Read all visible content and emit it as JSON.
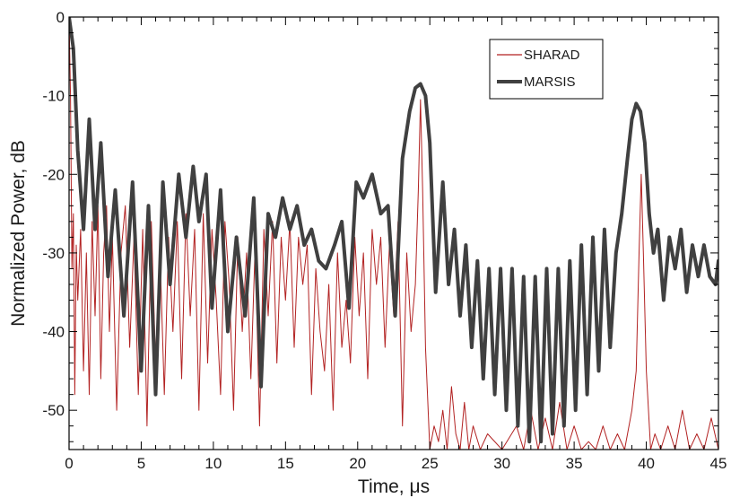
{
  "chart_data": {
    "type": "line",
    "title": "",
    "xlabel": "Time, μs",
    "ylabel": "Normalized Power, dB",
    "xlim": [
      0,
      45
    ],
    "ylim": [
      -55,
      0
    ],
    "xticks": [
      0,
      5,
      10,
      15,
      20,
      25,
      30,
      35,
      40,
      45
    ],
    "yticks": [
      0,
      -10,
      -20,
      -30,
      -40,
      -50
    ],
    "xtick_labels": [
      "0",
      "5",
      "10",
      "15",
      "20",
      "25",
      "30",
      "35",
      "40",
      "45"
    ],
    "ytick_labels": [
      "0",
      "-10",
      "-20",
      "-30",
      "-40",
      "-50"
    ],
    "grid": false,
    "legend_position": "top-right",
    "series": [
      {
        "name": "SHARAD",
        "color": "#b22222",
        "style": "thin",
        "x": [
          0,
          0.1,
          0.2,
          0.3,
          0.4,
          0.5,
          0.6,
          0.8,
          1.0,
          1.2,
          1.4,
          1.6,
          1.8,
          2.0,
          2.2,
          2.4,
          2.6,
          2.8,
          3.0,
          3.3,
          3.6,
          3.9,
          4.2,
          4.5,
          4.8,
          5.1,
          5.4,
          5.7,
          6.0,
          6.3,
          6.6,
          6.9,
          7.2,
          7.5,
          7.8,
          8.1,
          8.4,
          8.7,
          9.0,
          9.3,
          9.6,
          9.9,
          10.2,
          10.5,
          10.8,
          11.1,
          11.4,
          11.7,
          12.0,
          12.3,
          12.6,
          12.9,
          13.2,
          13.5,
          13.8,
          14.1,
          14.4,
          14.7,
          15.0,
          15.3,
          15.6,
          15.9,
          16.2,
          16.5,
          16.8,
          17.1,
          17.4,
          17.7,
          18.0,
          18.3,
          18.6,
          18.9,
          19.2,
          19.5,
          19.8,
          20.1,
          20.4,
          20.7,
          21.0,
          21.3,
          21.6,
          21.9,
          22.2,
          22.5,
          22.8,
          23.1,
          23.4,
          23.7,
          24.0,
          24.2,
          24.35,
          24.5,
          24.7,
          25.0,
          25.3,
          25.6,
          25.9,
          26.2,
          26.5,
          26.8,
          27.1,
          27.4,
          27.7,
          28.0,
          28.5,
          29.0,
          30.0,
          31.0,
          31.5,
          32.0,
          32.5,
          33.0,
          33.5,
          34.0,
          34.5,
          35.0,
          35.5,
          36.0,
          36.5,
          37.0,
          37.5,
          38.0,
          38.5,
          39.0,
          39.3,
          39.5,
          39.65,
          39.8,
          40.0,
          40.3,
          40.6,
          41.0,
          41.5,
          42.0,
          42.5,
          43.0,
          43.5,
          44.0,
          44.5,
          45.0
        ],
        "y": [
          0,
          -10,
          -32,
          -25,
          -48,
          -29,
          -36,
          -27,
          -45,
          -30,
          -48,
          -26,
          -38,
          -24,
          -46,
          -30,
          -24,
          -40,
          -28,
          -50,
          -30,
          -24,
          -42,
          -28,
          -48,
          -27,
          -52,
          -26,
          -44,
          -30,
          -48,
          -28,
          -40,
          -26,
          -46,
          -25,
          -38,
          -27,
          -50,
          -25,
          -44,
          -27,
          -36,
          -48,
          -26,
          -34,
          -50,
          -28,
          -40,
          -30,
          -46,
          -29,
          -52,
          -27,
          -38,
          -26,
          -44,
          -28,
          -36,
          -26,
          -42,
          -28,
          -34,
          -29,
          -48,
          -32,
          -40,
          -45,
          -34,
          -50,
          -30,
          -42,
          -36,
          -44,
          -28,
          -38,
          -30,
          -46,
          -27,
          -34,
          -28,
          -42,
          -29,
          -38,
          -26,
          -52,
          -30,
          -40,
          -34,
          -22,
          -10.5,
          -22,
          -42,
          -55,
          -52,
          -54,
          -50,
          -55,
          -47,
          -53,
          -55,
          -49,
          -55,
          -52,
          -55,
          -53,
          -55,
          -52,
          -55,
          -50,
          -55,
          -51,
          -55,
          -49,
          -55,
          -52,
          -55,
          -54,
          -55,
          -52,
          -55,
          -53,
          -55,
          -50,
          -45,
          -30,
          -20,
          -30,
          -45,
          -55,
          -53,
          -55,
          -52,
          -55,
          -50,
          -55,
          -53,
          -55,
          -51,
          -55
        ]
      },
      {
        "name": "MARSIS",
        "color": "#404040",
        "style": "thick",
        "x": [
          0,
          0.3,
          0.6,
          1.0,
          1.4,
          1.8,
          2.2,
          2.7,
          3.2,
          3.8,
          4.4,
          5.0,
          5.5,
          6.0,
          6.5,
          7.0,
          7.6,
          8.1,
          8.6,
          9.0,
          9.5,
          9.9,
          10.5,
          11.0,
          11.6,
          12.2,
          12.8,
          13.3,
          13.8,
          14.3,
          14.8,
          15.3,
          15.8,
          16.3,
          16.8,
          17.3,
          17.8,
          18.4,
          18.9,
          19.4,
          19.9,
          20.4,
          21.0,
          21.6,
          22.1,
          22.6,
          23.1,
          23.6,
          24.0,
          24.35,
          24.7,
          25.0,
          25.4,
          25.9,
          26.3,
          26.7,
          27.1,
          27.5,
          27.9,
          28.3,
          28.7,
          29.1,
          29.5,
          29.9,
          30.3,
          30.7,
          31.1,
          31.5,
          31.9,
          32.3,
          32.7,
          33.1,
          33.5,
          33.9,
          34.3,
          34.7,
          35.1,
          35.5,
          35.9,
          36.3,
          36.7,
          37.1,
          37.5,
          37.9,
          38.3,
          38.7,
          39.0,
          39.3,
          39.6,
          39.9,
          40.2,
          40.5,
          40.8,
          41.2,
          41.6,
          42.0,
          42.4,
          42.8,
          43.2,
          43.6,
          44.0,
          44.4,
          44.8,
          45.0
        ],
        "y": [
          0,
          -4,
          -17,
          -27,
          -13,
          -27,
          -16,
          -33,
          -22,
          -38,
          -21,
          -45,
          -24,
          -48,
          -21,
          -34,
          -20,
          -28,
          -19,
          -26,
          -20,
          -37,
          -22,
          -40,
          -28,
          -38,
          -23,
          -47,
          -25,
          -28,
          -23,
          -27,
          -24,
          -29,
          -27,
          -31,
          -32,
          -29,
          -26,
          -37,
          -21,
          -23,
          -20,
          -25,
          -24,
          -38,
          -18,
          -12,
          -9,
          -8.5,
          -10,
          -16,
          -35,
          -21,
          -34,
          -27,
          -38,
          -29,
          -42,
          -31,
          -46,
          -32,
          -48,
          -32,
          -50,
          -32,
          -52,
          -33,
          -54,
          -33,
          -54,
          -32,
          -53,
          -32,
          -52,
          -31,
          -50,
          -29,
          -48,
          -28,
          -45,
          -27,
          -42,
          -30,
          -25,
          -18,
          -13,
          -11,
          -12,
          -16,
          -25,
          -30,
          -27,
          -36,
          -28,
          -32,
          -27,
          -35,
          -29,
          -33,
          -29,
          -33,
          -34,
          -31
        ]
      }
    ]
  }
}
